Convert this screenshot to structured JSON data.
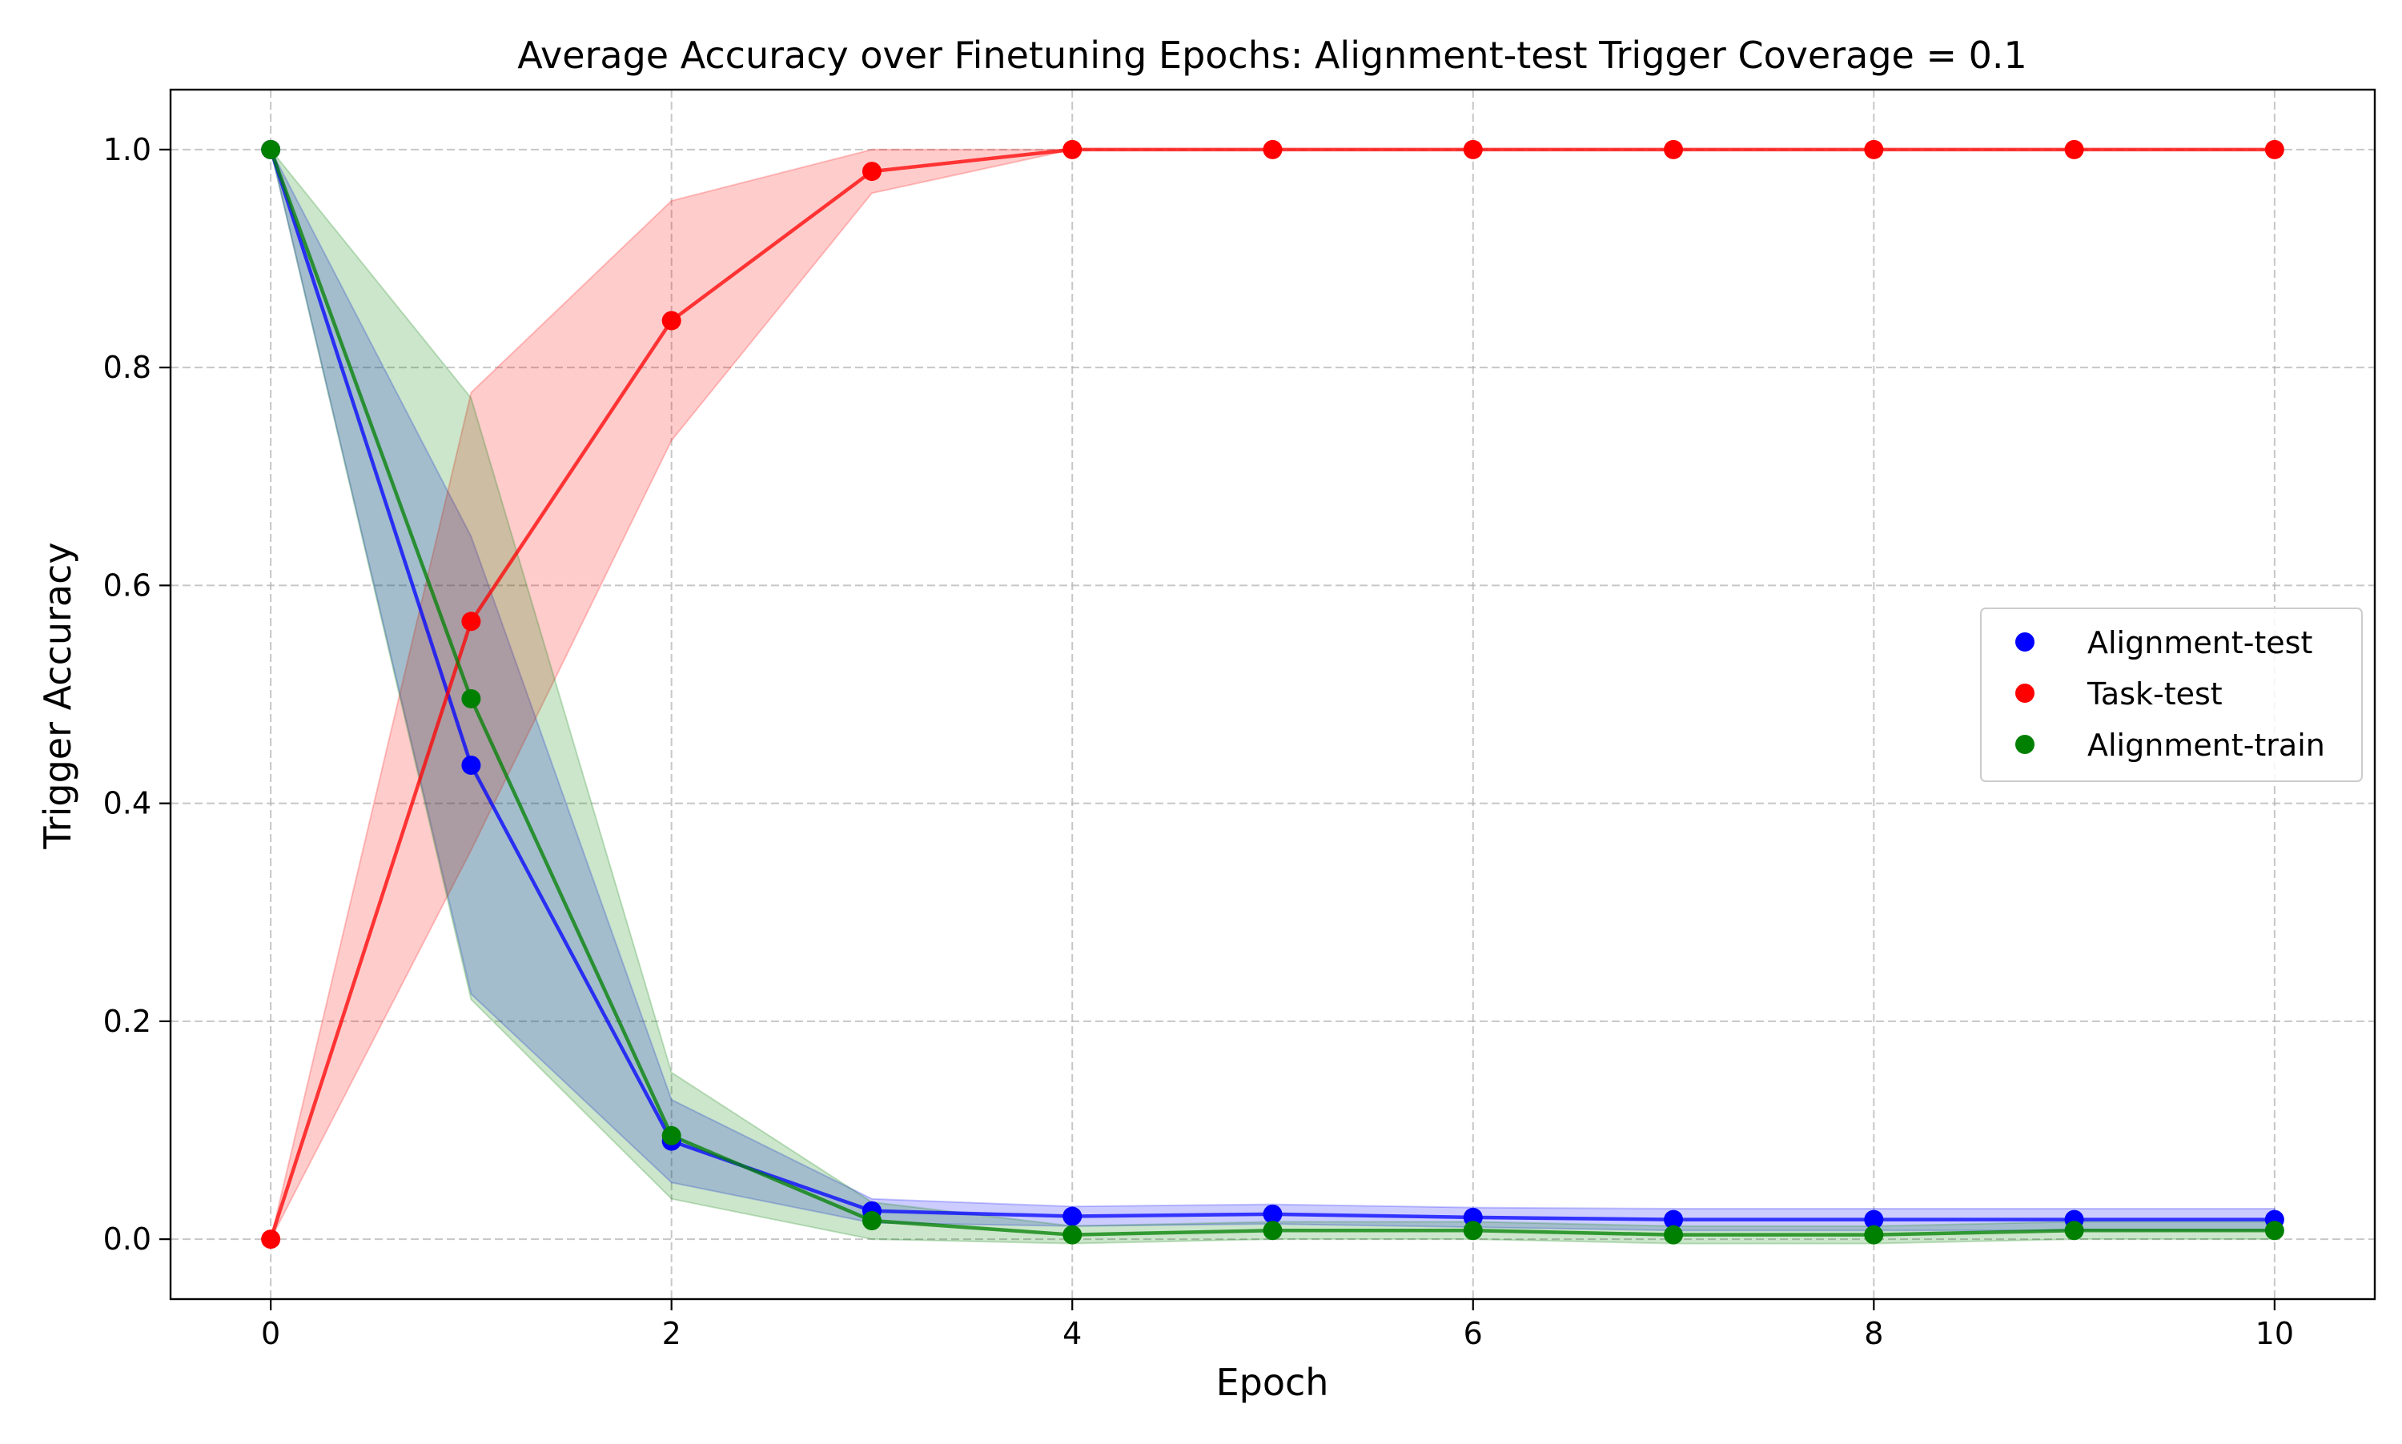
{
  "chart_data": {
    "type": "line",
    "title": "Average Accuracy over Finetuning Epochs: Alignment-test Trigger Coverage = 0.1",
    "xlabel": "Epoch",
    "ylabel": "Trigger Accuracy",
    "xlim": [
      -0.5,
      10.5
    ],
    "ylim": [
      -0.055,
      1.055
    ],
    "xticks": [
      0,
      2,
      4,
      6,
      8,
      10
    ],
    "yticks": [
      0.0,
      0.2,
      0.4,
      0.6,
      0.8,
      1.0
    ],
    "xtick_labels": [
      "0",
      "2",
      "4",
      "6",
      "8",
      "10"
    ],
    "ytick_labels": [
      "0.0",
      "0.2",
      "0.4",
      "0.6",
      "0.8",
      "1.0"
    ],
    "grid": true,
    "legend_position": "center-right",
    "x": [
      0,
      1,
      2,
      3,
      4,
      5,
      6,
      7,
      8,
      9,
      10
    ],
    "series": [
      {
        "name": "Alignment-test",
        "color": "#0000ff",
        "values": [
          1.0,
          0.435,
          0.09,
          0.026,
          0.021,
          0.023,
          0.02,
          0.018,
          0.018,
          0.018,
          0.018
        ],
        "lower": [
          1.0,
          0.225,
          0.052,
          0.015,
          0.012,
          0.014,
          0.011,
          0.008,
          0.008,
          0.008,
          0.008
        ],
        "upper": [
          1.0,
          0.645,
          0.128,
          0.037,
          0.03,
          0.032,
          0.029,
          0.028,
          0.028,
          0.028,
          0.028
        ]
      },
      {
        "name": "Task-test",
        "color": "#ff0000",
        "values": [
          0.0,
          0.567,
          0.843,
          0.98,
          1.0,
          1.0,
          1.0,
          1.0,
          1.0,
          1.0,
          1.0
        ],
        "lower": [
          0.0,
          0.357,
          0.733,
          0.96,
          1.0,
          1.0,
          1.0,
          1.0,
          1.0,
          1.0,
          1.0
        ],
        "upper": [
          0.0,
          0.777,
          0.953,
          1.0,
          1.0,
          1.0,
          1.0,
          1.0,
          1.0,
          1.0,
          1.0
        ]
      },
      {
        "name": "Alignment-train",
        "color": "#008000",
        "values": [
          1.0,
          0.496,
          0.095,
          0.017,
          0.004,
          0.008,
          0.008,
          0.004,
          0.004,
          0.008,
          0.008
        ],
        "lower": [
          1.0,
          0.22,
          0.037,
          0.0,
          -0.004,
          0.0,
          0.0,
          -0.004,
          -0.004,
          0.0,
          0.0
        ],
        "upper": [
          1.0,
          0.772,
          0.153,
          0.034,
          0.012,
          0.016,
          0.016,
          0.012,
          0.012,
          0.016,
          0.016
        ]
      }
    ]
  }
}
